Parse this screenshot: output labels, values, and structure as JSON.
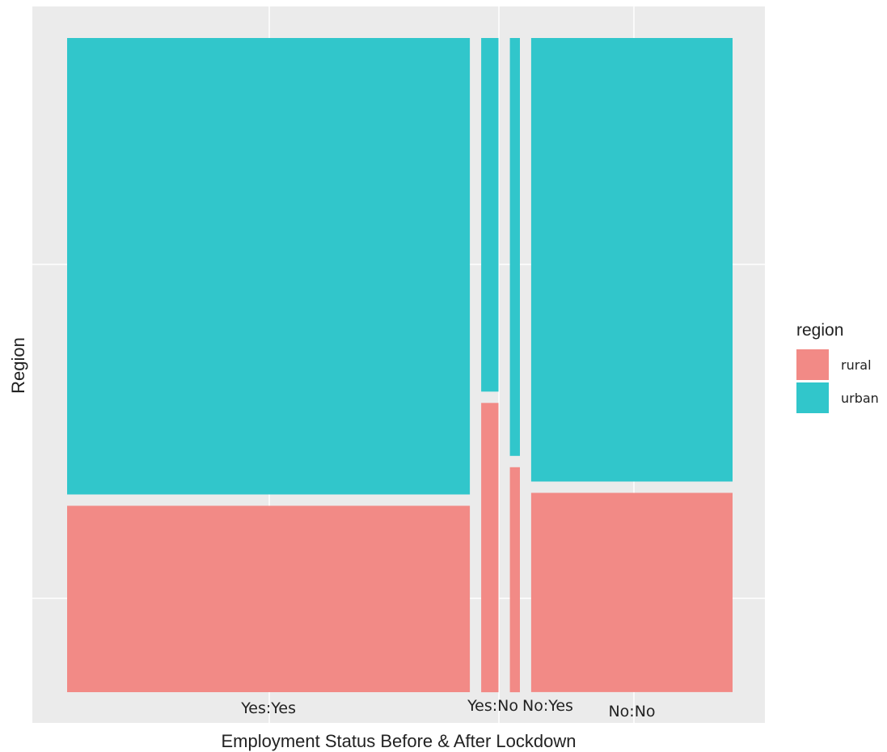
{
  "chart_data": {
    "type": "mosaic",
    "xlabel": "Employment Status Before & After Lockdown",
    "ylabel": "Region",
    "categories": [
      "Yes:Yes",
      "Yes:No",
      "No:Yes",
      "No:No"
    ],
    "category_widths": [
      0.604,
      0.026,
      0.015,
      0.302
    ],
    "legend": {
      "title": "region",
      "position": "right",
      "entries": [
        {
          "name": "rural",
          "color": "#F28A86"
        },
        {
          "name": "urban",
          "color": "#31C6CB"
        }
      ]
    },
    "series": [
      {
        "name": "rural",
        "values": [
          0.29,
          0.45,
          0.35,
          0.31
        ]
      },
      {
        "name": "urban",
        "values": [
          0.71,
          0.55,
          0.65,
          0.69
        ]
      }
    ],
    "colors": {
      "panel_background": "#EBEBEB",
      "grid": "#FFFFFF"
    },
    "grid": true
  }
}
